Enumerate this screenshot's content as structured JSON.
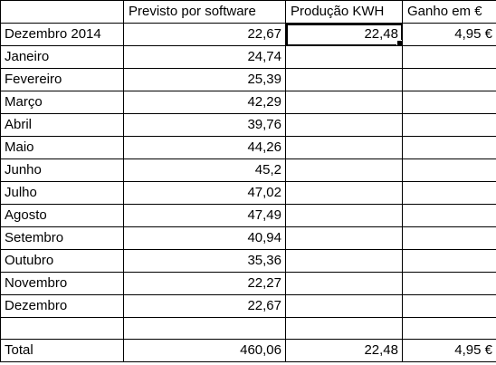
{
  "header": {
    "a": "",
    "b": "Previsto por software",
    "c": "Produção KWH",
    "d": "Ganho em €"
  },
  "rows": [
    {
      "month": "Dezembro 2014",
      "previsto": "22,67",
      "producao": "22,48",
      "ganho": "4,95 €"
    },
    {
      "month": "Janeiro",
      "previsto": "24,74",
      "producao": "",
      "ganho": ""
    },
    {
      "month": "Fevereiro",
      "previsto": "25,39",
      "producao": "",
      "ganho": ""
    },
    {
      "month": "Março",
      "previsto": "42,29",
      "producao": "",
      "ganho": ""
    },
    {
      "month": "Abril",
      "previsto": "39,76",
      "producao": "",
      "ganho": ""
    },
    {
      "month": "Maio",
      "previsto": "44,26",
      "producao": "",
      "ganho": ""
    },
    {
      "month": "Junho",
      "previsto": "45,2",
      "producao": "",
      "ganho": ""
    },
    {
      "month": "Julho",
      "previsto": "47,02",
      "producao": "",
      "ganho": ""
    },
    {
      "month": "Agosto",
      "previsto": "47,49",
      "producao": "",
      "ganho": ""
    },
    {
      "month": "Setembro",
      "previsto": "40,94",
      "producao": "",
      "ganho": ""
    },
    {
      "month": "Outubro",
      "previsto": "35,36",
      "producao": "",
      "ganho": ""
    },
    {
      "month": "Novembro",
      "previsto": "22,27",
      "producao": "",
      "ganho": ""
    },
    {
      "month": "Dezembro",
      "previsto": "22,67",
      "producao": "",
      "ganho": ""
    },
    {
      "month": "",
      "previsto": "",
      "producao": "",
      "ganho": ""
    }
  ],
  "total": {
    "label": "Total",
    "previsto": "460,06",
    "producao": "22,48",
    "ganho": "4,95 €"
  }
}
